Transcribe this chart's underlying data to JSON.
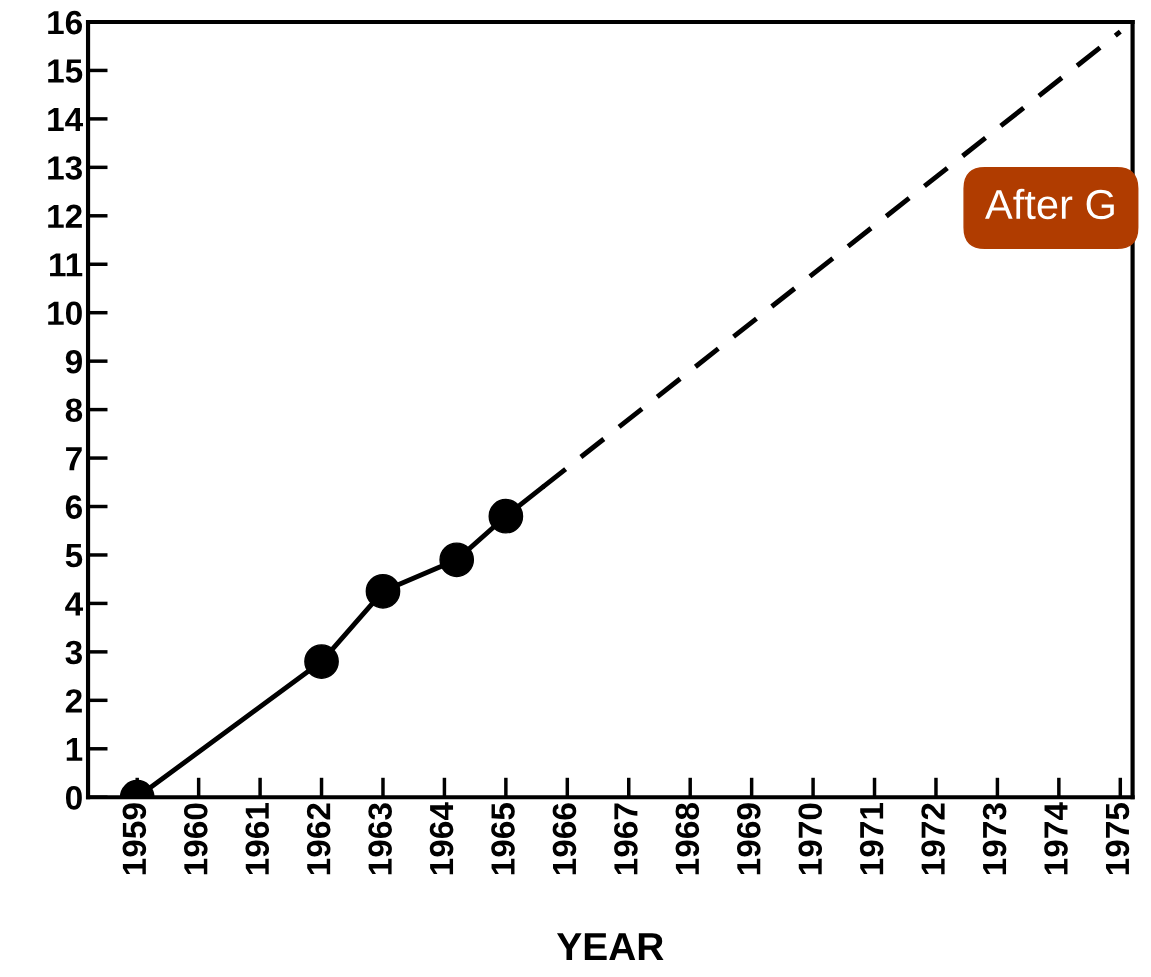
{
  "chart_data": {
    "type": "line",
    "xlabel": "YEAR",
    "xlim": [
      1958.2,
      1975.2
    ],
    "xticks": [
      1959,
      1960,
      1961,
      1962,
      1963,
      1964,
      1965,
      1966,
      1967,
      1968,
      1969,
      1970,
      1971,
      1972,
      1973,
      1974,
      1975
    ],
    "ylim": [
      0,
      16
    ],
    "yticks": [
      0,
      1,
      2,
      3,
      4,
      5,
      6,
      7,
      8,
      9,
      10,
      11,
      12,
      13,
      14,
      15,
      16
    ],
    "grid": false,
    "legend": false,
    "series": [
      {
        "color": "#000000",
        "x": [
          1959,
          1962,
          1963,
          1964.2,
          1965,
          1965.6
        ],
        "values": [
          0,
          2.8,
          4.25,
          4.9,
          5.8,
          6.4
        ],
        "marker": "none",
        "line_style": "solid"
      },
      {
        "type": "scatter",
        "color": "#000000",
        "x": [
          1959,
          1962,
          1963,
          1964.2,
          1965
        ],
        "values": [
          0,
          2.8,
          4.25,
          4.9,
          5.8
        ],
        "marker": "circle"
      },
      {
        "color": "#000000",
        "x": [
          1965.6,
          1975
        ],
        "values": [
          6.4,
          15.8
        ],
        "marker": "none",
        "line_style": "dashed"
      }
    ],
    "annotations": [
      "After G"
    ]
  }
}
